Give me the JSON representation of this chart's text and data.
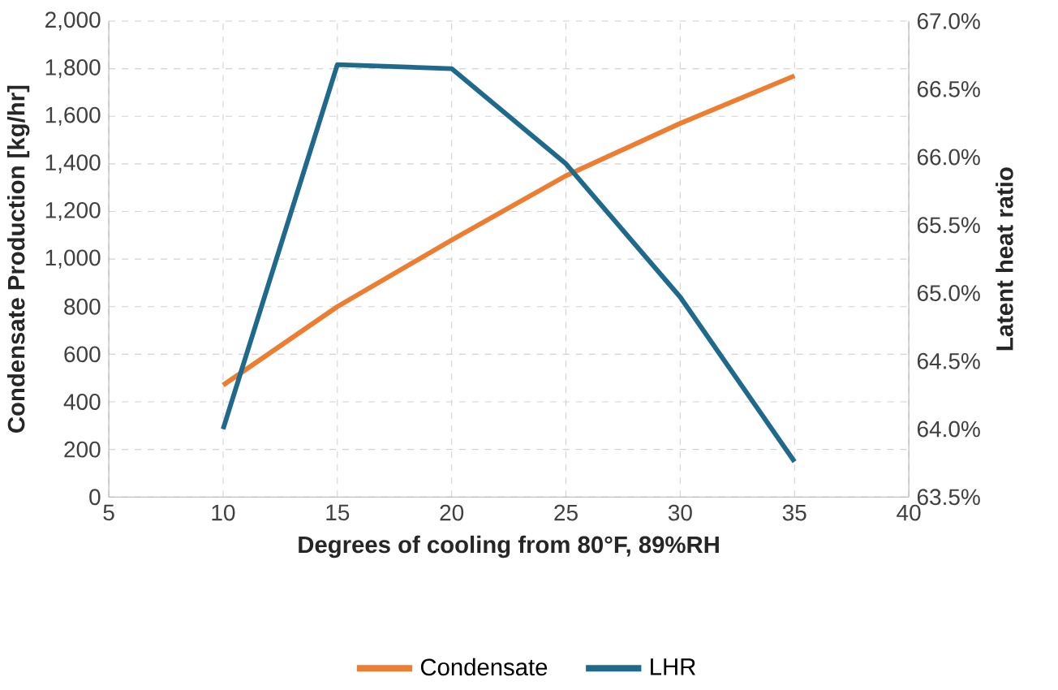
{
  "chart_data": {
    "type": "line",
    "xlabel": "Degrees of cooling from 80°F, 89%RH",
    "ylabel": "Condensate Production [kg/hr]",
    "y2label": "Latent heat ratio",
    "x": [
      10,
      15,
      20,
      25,
      30,
      35
    ],
    "series": [
      {
        "name": "Condensate",
        "color": "#ED7D31",
        "values": [
          470,
          800,
          1080,
          1350,
          1570,
          1770
        ]
      },
      {
        "name": "LHR",
        "color": "#1F6A8C",
        "axis": "y2",
        "values": [
          64.0,
          66.68,
          66.65,
          65.95,
          64.97,
          63.76
        ]
      }
    ],
    "xlim": [
      5,
      40
    ],
    "xticks": [
      5,
      10,
      15,
      20,
      25,
      30,
      35,
      40
    ],
    "ylim": [
      0,
      2000
    ],
    "yticks": [
      0,
      200,
      400,
      600,
      800,
      {
        "value": 1000,
        "label": "1,000"
      },
      {
        "value": 1200,
        "label": "1,200"
      },
      {
        "value": 1400,
        "label": "1,400"
      },
      {
        "value": 1600,
        "label": "1,600"
      },
      {
        "value": 1800,
        "label": "1,800"
      },
      {
        "value": 2000,
        "label": "2,000"
      }
    ],
    "y2lim": [
      63.5,
      67
    ],
    "y2ticks": [
      {
        "value": 63.5,
        "label": "63.5%"
      },
      {
        "value": 64,
        "label": "64.0%"
      },
      {
        "value": 64.5,
        "label": "64.5%"
      },
      {
        "value": 65,
        "label": "65.0%"
      },
      {
        "value": 65.5,
        "label": "65.5%"
      },
      {
        "value": 66,
        "label": "66.0%"
      },
      {
        "value": 66.5,
        "label": "66.5%"
      },
      {
        "value": 67,
        "label": "67.0%"
      }
    ],
    "grid": true,
    "legend": "bottom",
    "marker": "none",
    "line_style": "solid"
  }
}
